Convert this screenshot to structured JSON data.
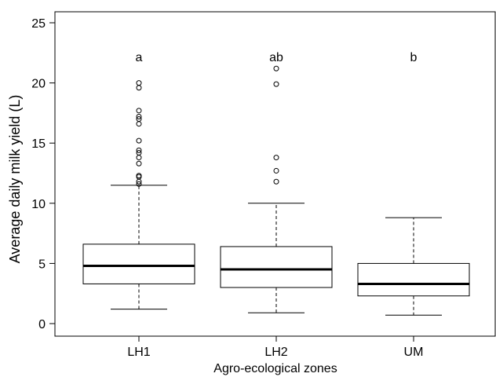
{
  "chart_data": {
    "type": "boxplot",
    "xlabel": "Agro-ecological zones",
    "ylabel": "Average daily milk yield (L)",
    "ylim": [
      -1,
      26
    ],
    "yticks": [
      0,
      5,
      10,
      15,
      20,
      25
    ],
    "categories": [
      "LH1",
      "LH2",
      "UM"
    ],
    "boxes": [
      {
        "name": "LH1",
        "min": 1.2,
        "q1": 3.3,
        "median": 4.8,
        "q3": 6.6,
        "max": 11.5,
        "outliers": [
          11.6,
          11.8,
          12.2,
          12.3,
          13.3,
          13.8,
          14.2,
          14.4,
          15.2,
          16.6,
          17.0,
          17.2,
          17.7,
          19.6,
          20.0
        ],
        "annotation": "a"
      },
      {
        "name": "LH2",
        "min": 0.9,
        "q1": 3.0,
        "median": 4.5,
        "q3": 6.4,
        "max": 10.0,
        "outliers": [
          11.8,
          12.7,
          13.8,
          19.9,
          21.2
        ],
        "annotation": "ab"
      },
      {
        "name": "UM",
        "min": 0.7,
        "q1": 2.3,
        "median": 3.3,
        "q3": 5.0,
        "max": 8.8,
        "outliers": [],
        "annotation": "b"
      }
    ],
    "annotation_y": 22.2,
    "grid": false,
    "legend": "none"
  }
}
